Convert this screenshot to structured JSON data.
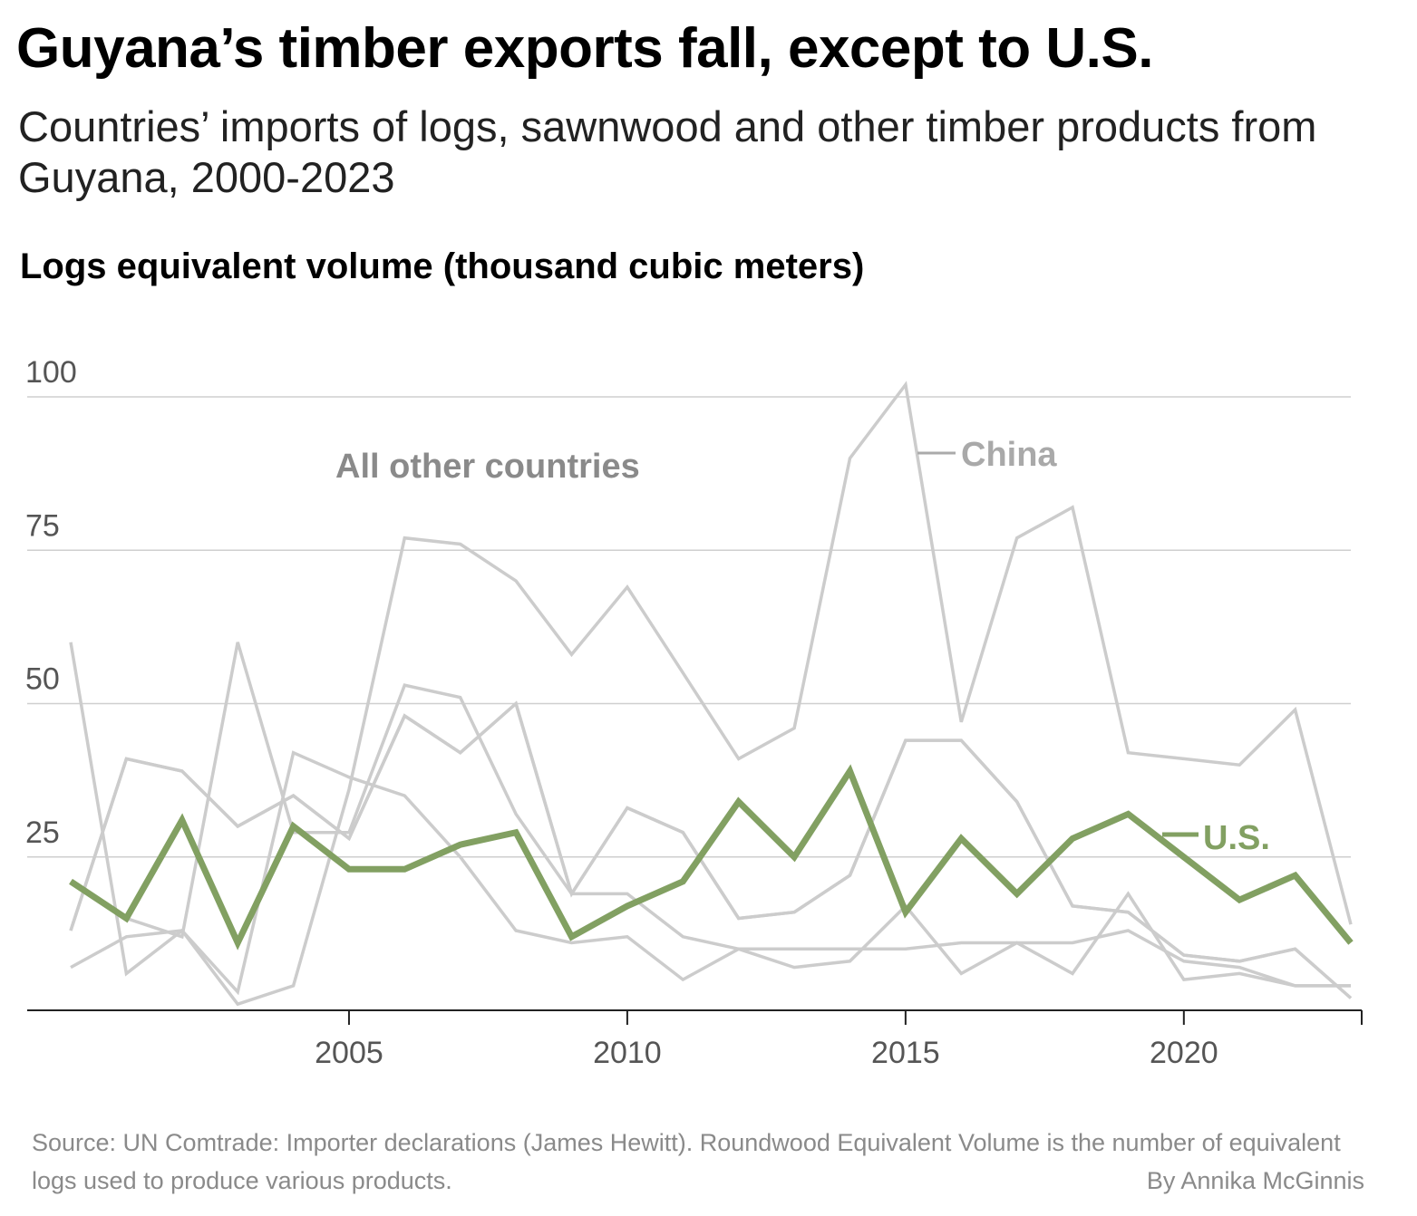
{
  "title": "Guyana’s timber exports fall, except to U.S.",
  "subtitle": "Countries’ imports of logs, sawnwood and other timber products from Guyana, 2000-2023",
  "source": "Source: UN Comtrade: Importer declarations (James Hewitt). Roundwood Equivalent Volume is the number of equivalent logs used to produce various products.",
  "byline": "By Annika McGinnis",
  "colors": {
    "highlight": "#82a062",
    "other": "#cccccc",
    "label_gray": "#8a8a8a",
    "china_label": "#a9a9a9",
    "grid": "#cfcfcf",
    "axis": "#222222",
    "tick_label": "#555555"
  },
  "chart_data": {
    "type": "line",
    "title": "Guyana’s timber exports fall, except to U.S.",
    "ylabel": "Logs equivalent volume (thousand cubic meters)",
    "xlabel": "",
    "x": [
      2000,
      2001,
      2002,
      2003,
      2004,
      2005,
      2006,
      2007,
      2008,
      2009,
      2010,
      2011,
      2012,
      2013,
      2014,
      2015,
      2016,
      2017,
      2018,
      2019,
      2020,
      2021,
      2022,
      2023
    ],
    "xticks": [
      "2005",
      "2010",
      "2015",
      "2020"
    ],
    "ylim": [
      0,
      100
    ],
    "yticks": [
      "100",
      "75",
      "50",
      "25"
    ],
    "grid": true,
    "series": [
      {
        "name": "",
        "values": [
          60,
          6,
          13,
          3,
          42,
          38,
          35,
          25,
          13,
          11,
          12,
          5,
          10,
          7,
          8,
          17,
          6,
          11,
          6,
          19,
          5,
          6,
          4,
          4
        ]
      },
      {
        "name": "",
        "values": [
          7,
          12,
          13,
          1,
          4,
          36,
          77,
          76,
          70,
          58,
          69,
          55,
          41,
          46,
          90,
          102,
          47,
          77,
          82,
          42,
          41,
          40,
          49,
          14
        ]
      },
      {
        "name": "",
        "values": [
          13,
          41,
          39,
          30,
          35,
          28,
          48,
          42,
          50,
          19,
          33,
          29,
          15,
          16,
          22,
          44,
          44,
          34,
          17,
          16,
          9,
          8,
          10,
          2
        ]
      },
      {
        "name": "",
        "values": [
          21,
          15,
          12,
          60,
          29,
          29,
          53,
          51,
          32,
          19,
          19,
          12,
          10,
          10,
          10,
          10,
          11,
          11,
          11,
          13,
          8,
          7,
          4,
          4
        ]
      },
      {
        "name": "China",
        "values": [
          13,
          41,
          39,
          30,
          35,
          28,
          48,
          42,
          50,
          19,
          33,
          29,
          15,
          16,
          22,
          44,
          44,
          34,
          17,
          16,
          9,
          8,
          10,
          2
        ]
      },
      {
        "name": "U.S.",
        "values": [
          21,
          15,
          31,
          11,
          30,
          23,
          23,
          27,
          29,
          12,
          17,
          21,
          34,
          25,
          39,
          16,
          28,
          19,
          28,
          32,
          25,
          18,
          22,
          11
        ]
      }
    ],
    "series_labels": {
      "other": "All other countries",
      "china": "China",
      "us": "U.S."
    }
  }
}
